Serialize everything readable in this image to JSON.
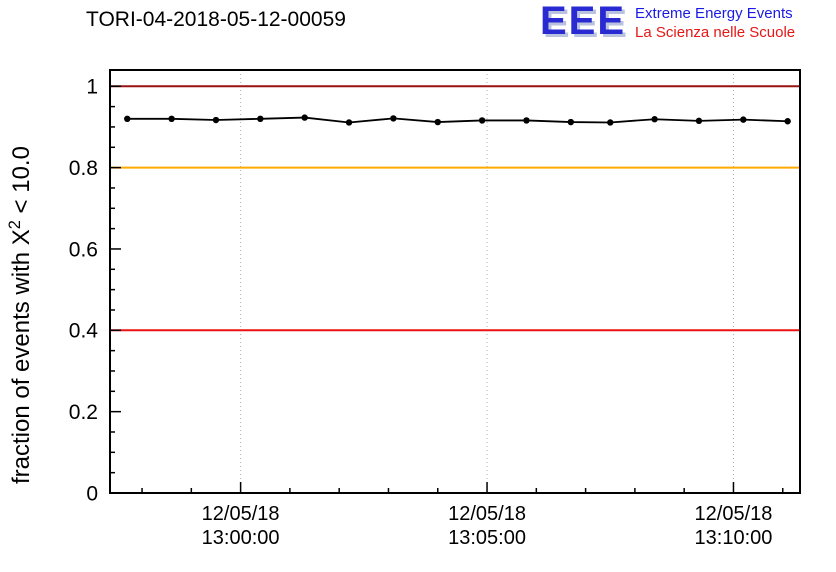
{
  "logo": {
    "acronym": "EEE",
    "line1": "Extreme Energy Events",
    "line2": "La Scienza nelle Scuole"
  },
  "chart_data": {
    "type": "line",
    "title": "TORI-04-2018-05-12-00059",
    "ylabel": {
      "prefix": "fraction of events with X",
      "sup": "2",
      "suffix": " < 10.0"
    },
    "ylim": [
      0,
      1.04
    ],
    "yticks": [
      0,
      0.2,
      0.4,
      0.6,
      0.8,
      1.0
    ],
    "ytick_labels": [
      "0",
      "0.2",
      "0.4",
      "0.6",
      "0.8",
      "1"
    ],
    "y_minor_step": 0.05,
    "x_axis": {
      "range_minutes": [
        -2.65,
        11.35
      ],
      "major_ticks": [
        0,
        5,
        10
      ],
      "minor_step": 1
    },
    "xtick_labels": [
      [
        "12/05/18",
        "13:00:00"
      ],
      [
        "12/05/18",
        "13:05:00"
      ],
      [
        "12/05/18",
        "13:10:00"
      ]
    ],
    "grid": "dotted-vertical",
    "grid_color": "#b0b0b0",
    "series": [
      {
        "name": "fraction of events with chi2 < 10",
        "color": "#000000",
        "marker": "circle",
        "x_minutes": [
          -2.3,
          -1.4,
          -0.5,
          0.4,
          1.3,
          2.2,
          3.1,
          4.0,
          4.9,
          5.8,
          6.7,
          7.5,
          8.4,
          9.3,
          10.2,
          11.1
        ],
        "values": [
          0.92,
          0.92,
          0.917,
          0.92,
          0.923,
          0.911,
          0.921,
          0.912,
          0.916,
          0.916,
          0.912,
          0.911,
          0.919,
          0.915,
          0.918,
          0.914
        ],
        "yerr": 0.005
      }
    ],
    "reference_lines": [
      {
        "y": 1.0,
        "color": "#991111"
      },
      {
        "y": 0.8,
        "color": "#ffaa00"
      },
      {
        "y": 0.4,
        "color": "#ee1111"
      }
    ]
  }
}
